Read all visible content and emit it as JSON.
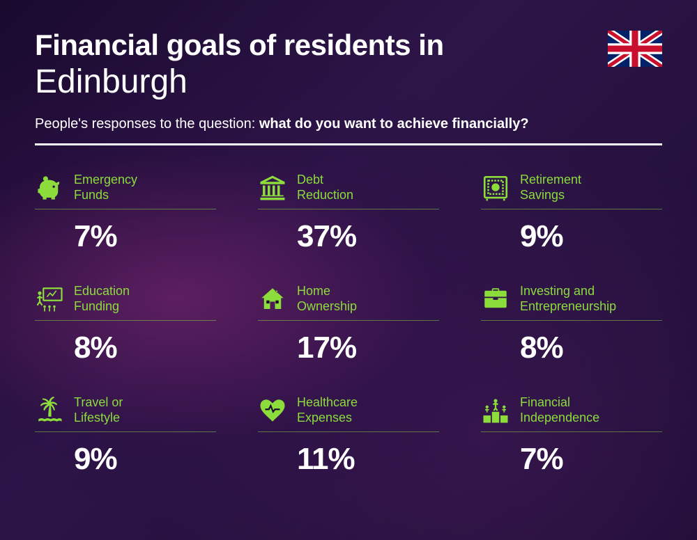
{
  "header": {
    "title_prefix": "Financial goals of residents in",
    "city": "Edinburgh",
    "subtitle_lead": "People's responses to the question: ",
    "subtitle_bold": "what do you want to achieve financially?"
  },
  "styling": {
    "accent_color": "#8cdc3c",
    "text_color": "#ffffff",
    "background_base": "#1a0a2e",
    "title_bold_fontsize": 42,
    "title_city_fontsize": 48,
    "subtitle_fontsize": 20,
    "label_fontsize": 18,
    "pct_fontsize": 44,
    "grid_columns": 3,
    "grid_rows": 3
  },
  "flag": {
    "country": "United Kingdom",
    "bg": "#012169",
    "red": "#C8102E",
    "white": "#ffffff"
  },
  "items": [
    {
      "label": "Emergency\nFunds",
      "pct": "7%",
      "icon": "piggy-bank-icon"
    },
    {
      "label": "Debt\nReduction",
      "pct": "37%",
      "icon": "bank-icon"
    },
    {
      "label": "Retirement\nSavings",
      "pct": "9%",
      "icon": "safe-icon"
    },
    {
      "label": "Education\nFunding",
      "pct": "8%",
      "icon": "presentation-icon"
    },
    {
      "label": "Home\nOwnership",
      "pct": "17%",
      "icon": "house-icon"
    },
    {
      "label": "Investing and\nEntrepreneurship",
      "pct": "8%",
      "icon": "briefcase-icon"
    },
    {
      "label": "Travel or\nLifestyle",
      "pct": "9%",
      "icon": "palm-icon"
    },
    {
      "label": "Healthcare\nExpenses",
      "pct": "11%",
      "icon": "heart-pulse-icon"
    },
    {
      "label": "Financial\nIndependence",
      "pct": "7%",
      "icon": "podium-icon"
    }
  ]
}
